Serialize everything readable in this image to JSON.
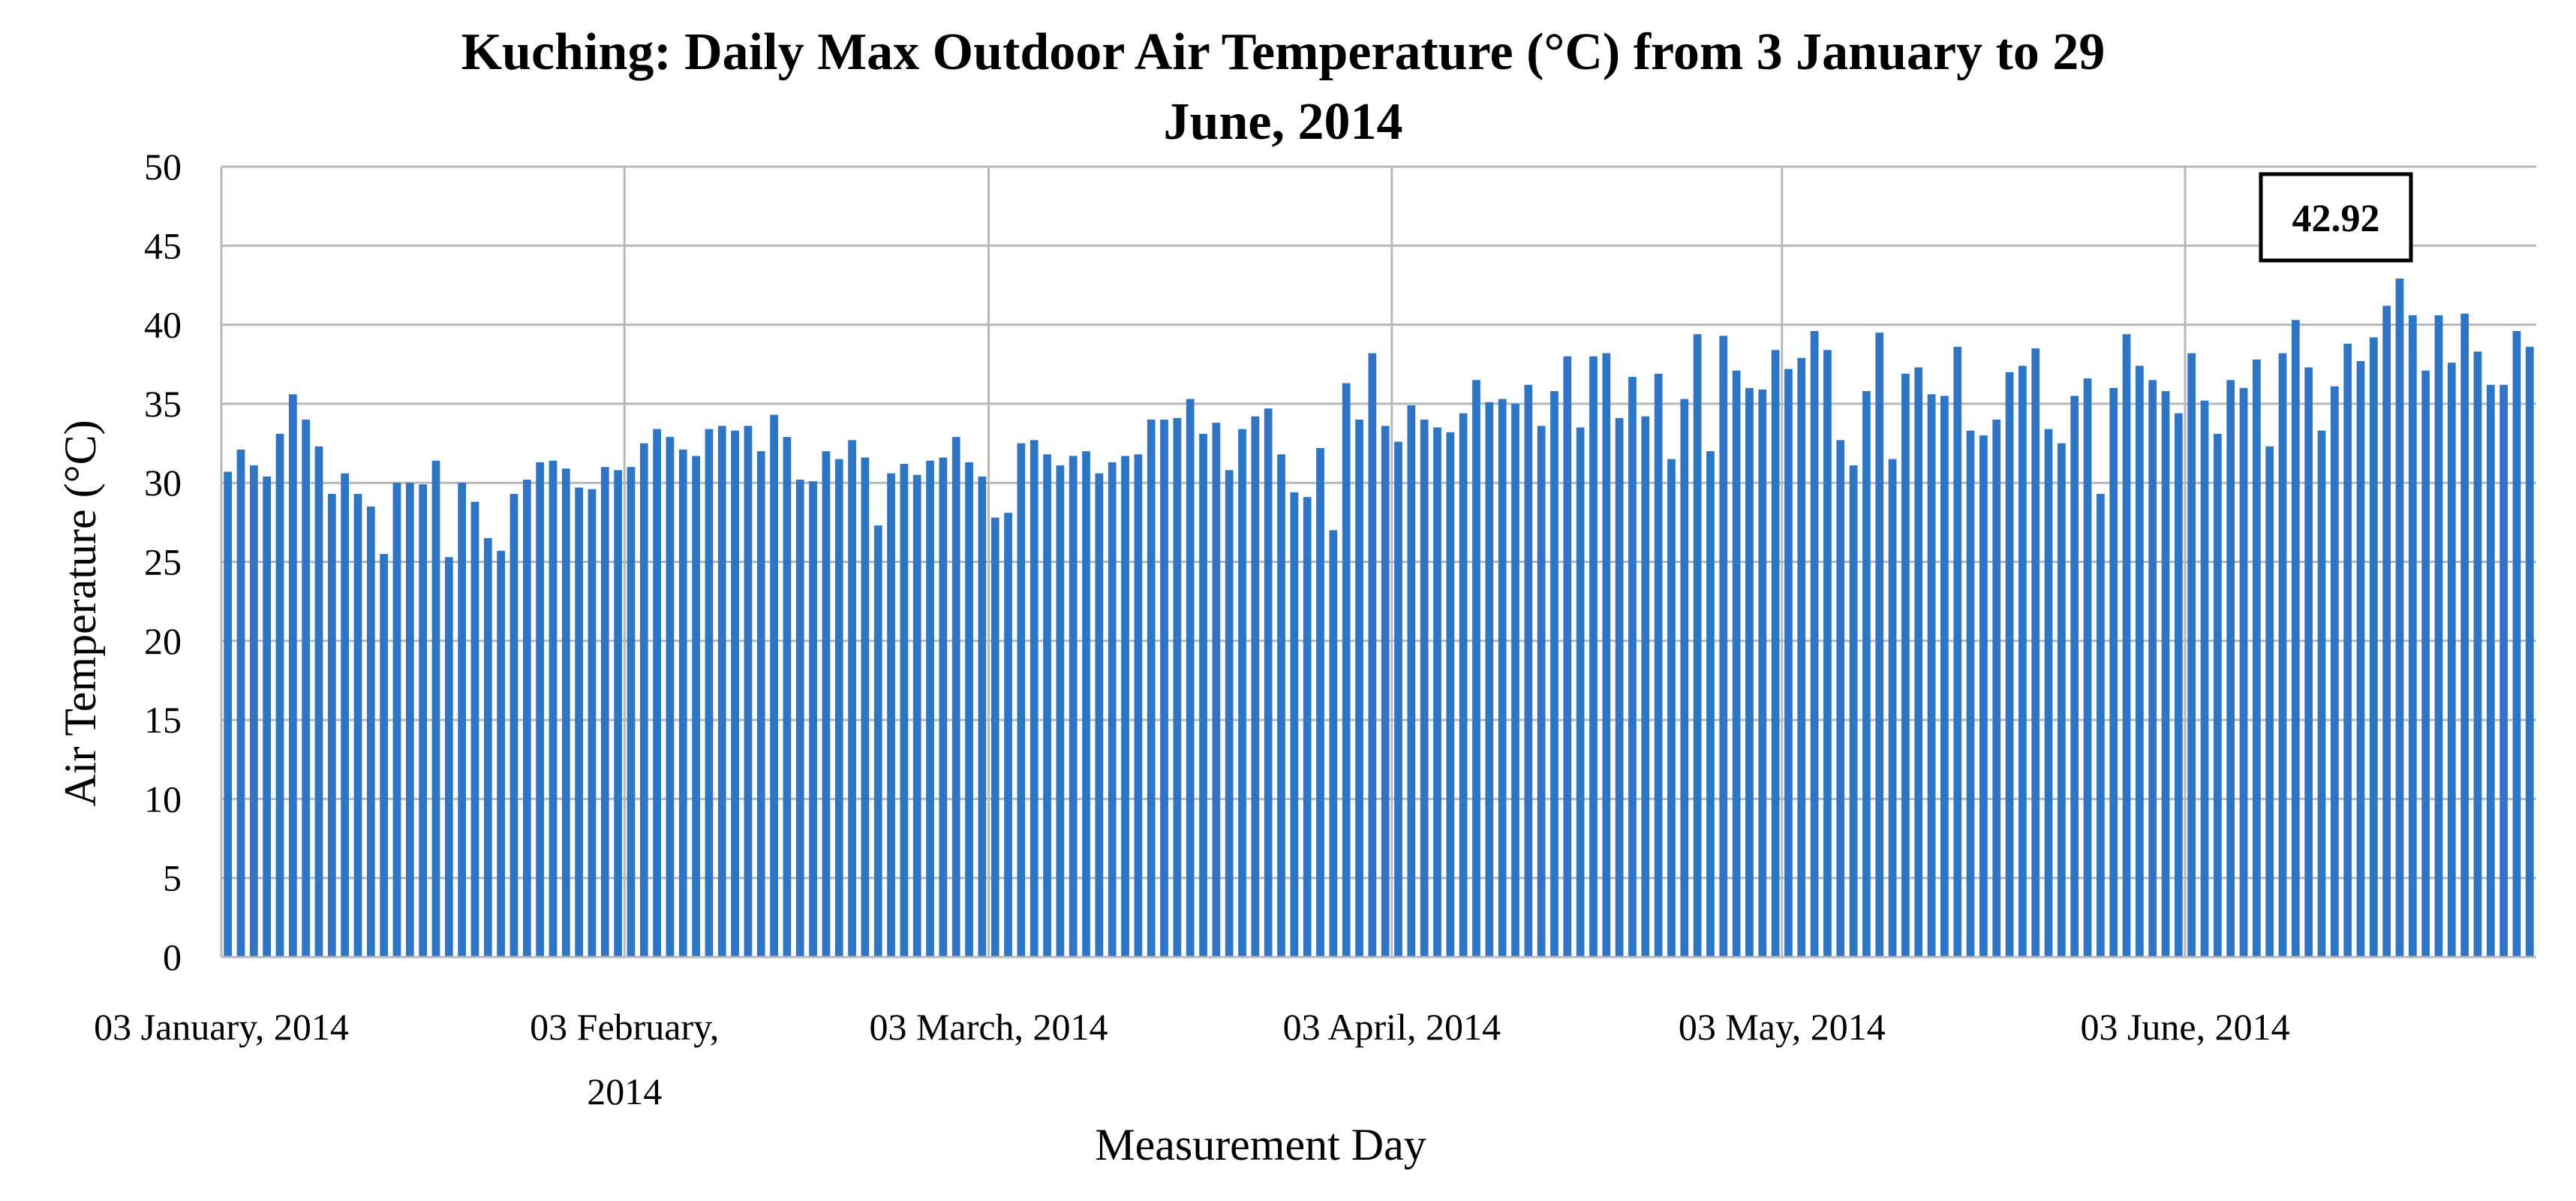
{
  "chart_data": {
    "type": "bar",
    "title_lines": [
      "Kuching: Daily Max Outdoor Air Temperature (°C) from 3 January to 29",
      "June, 2014"
    ],
    "xlabel": "Measurement Day",
    "ylabel": "Air Temperature (°C)",
    "ylim": [
      0,
      50
    ],
    "yticks": [
      0,
      5,
      10,
      15,
      20,
      25,
      30,
      35,
      40,
      45,
      50
    ],
    "grid": true,
    "bar_color": "#2E75C6",
    "grid_color": "#B8B8B8",
    "x_tick_labels": [
      {
        "lines": [
          "03 January, 2014"
        ],
        "day_index": 0
      },
      {
        "lines": [
          "03 February,",
          "2014"
        ],
        "day_index": 31
      },
      {
        "lines": [
          "03 March, 2014"
        ],
        "day_index": 59
      },
      {
        "lines": [
          "03 April, 2014"
        ],
        "day_index": 90
      },
      {
        "lines": [
          "03 May, 2014"
        ],
        "day_index": 120
      },
      {
        "lines": [
          "03 June, 2014"
        ],
        "day_index": 151
      }
    ],
    "annotation": {
      "text": "42.92",
      "day_index": 167,
      "value": 42.92
    },
    "values": [
      30.7,
      32.1,
      31.1,
      30.4,
      33.1,
      35.6,
      34.0,
      32.3,
      29.3,
      30.6,
      29.3,
      28.5,
      25.5,
      30.0,
      30.0,
      29.9,
      31.4,
      25.3,
      30.0,
      28.8,
      26.5,
      25.7,
      29.3,
      30.2,
      31.3,
      31.4,
      30.9,
      29.7,
      29.6,
      31.0,
      30.8,
      31.0,
      32.5,
      33.4,
      32.9,
      32.1,
      31.7,
      33.4,
      33.6,
      33.3,
      33.6,
      32.0,
      34.3,
      32.9,
      30.2,
      30.1,
      32.0,
      31.5,
      32.7,
      31.6,
      27.3,
      30.6,
      31.2,
      30.5,
      31.4,
      31.6,
      32.9,
      31.3,
      30.4,
      27.8,
      28.1,
      32.5,
      32.7,
      31.8,
      31.1,
      31.7,
      32.0,
      30.6,
      31.3,
      31.7,
      31.8,
      34.0,
      34.0,
      34.1,
      35.3,
      33.1,
      33.8,
      30.8,
      33.4,
      34.2,
      34.7,
      31.8,
      29.4,
      29.1,
      32.2,
      27.0,
      36.3,
      34.0,
      38.2,
      33.6,
      32.6,
      34.9,
      34.0,
      33.5,
      33.2,
      34.4,
      36.5,
      35.1,
      35.3,
      35.0,
      36.2,
      33.6,
      35.8,
      38.0,
      33.5,
      38.0,
      38.2,
      34.1,
      36.7,
      34.2,
      36.9,
      31.5,
      35.3,
      39.4,
      32.0,
      39.3,
      37.1,
      36.0,
      35.9,
      38.4,
      37.2,
      37.9,
      39.6,
      38.4,
      32.7,
      31.1,
      35.8,
      39.5,
      31.5,
      36.9,
      37.3,
      35.6,
      35.5,
      38.6,
      33.3,
      33.0,
      34.0,
      37.0,
      37.4,
      38.5,
      33.4,
      32.5,
      35.5,
      36.6,
      29.3,
      36.0,
      39.4,
      37.4,
      36.5,
      35.8,
      34.4,
      38.2,
      35.2,
      33.1,
      36.5,
      36.0,
      37.8,
      32.3,
      38.2,
      40.3,
      37.3,
      33.3,
      36.1,
      38.8,
      37.7,
      39.2,
      41.2,
      42.92,
      40.6,
      37.1,
      40.6,
      37.6,
      40.7,
      38.3,
      36.2,
      36.2,
      39.6,
      38.6
    ]
  }
}
